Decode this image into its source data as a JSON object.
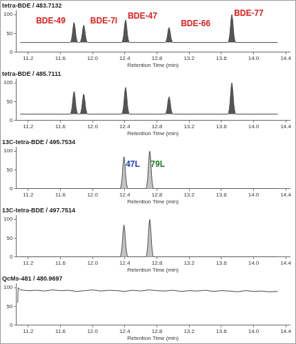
{
  "chart_data": [
    {
      "type": "area",
      "title": "tetra-BDE / 483.7132",
      "x_label": "Retention Time (min)",
      "x": [
        11.1,
        11.72,
        11.745,
        11.758,
        11.77,
        11.782,
        11.795,
        11.82,
        11.84,
        11.865,
        11.878,
        11.89,
        11.902,
        11.915,
        11.94,
        12.36,
        12.385,
        12.398,
        12.41,
        12.422,
        12.435,
        12.46,
        12.9,
        12.925,
        12.938,
        12.95,
        12.962,
        12.975,
        13.0,
        13.68,
        13.705,
        13.718,
        13.73,
        13.742,
        13.755,
        13.78,
        14.3
      ],
      "values": [
        26,
        26,
        42,
        66,
        79,
        66,
        42,
        26,
        26,
        40,
        60,
        72,
        60,
        40,
        26,
        26,
        44,
        71,
        86,
        71,
        44,
        26,
        26,
        38,
        56,
        66,
        56,
        38,
        26,
        26,
        48,
        82,
        100,
        82,
        48,
        26,
        26
      ],
      "color": "#555555",
      "xlim": [
        11.05,
        14.45
      ],
      "xticks": [
        11.2,
        11.6,
        {
          "value": 12,
          "label": "12.0"
        },
        12.4,
        12.8,
        13.2,
        13.6,
        {
          "value": 14,
          "label": "14.0"
        },
        14.4
      ],
      "ylim": [
        0,
        110
      ],
      "yticks": [
        0,
        50,
        100
      ],
      "grid": false,
      "annotations": [
        {
          "text": "BDE-49",
          "x": 11.48,
          "y": 82,
          "color": "#e02020"
        },
        {
          "text": "BDE-7l",
          "x": 12.14,
          "y": 82,
          "color": "#e02020"
        },
        {
          "text": "BDE-47",
          "x": 12.62,
          "y": 96,
          "color": "#e02020"
        },
        {
          "text": "BDE-66",
          "x": 13.28,
          "y": 75,
          "color": "#e02020"
        },
        {
          "text": "BDE-77",
          "x": 13.94,
          "y": 102,
          "color": "#e02020"
        }
      ]
    },
    {
      "type": "area",
      "title": "tetra-BDE / 485.7111",
      "x_label": "Retention Time (min)",
      "x": [
        11.1,
        11.72,
        11.745,
        11.758,
        11.77,
        11.782,
        11.795,
        11.82,
        11.84,
        11.865,
        11.878,
        11.89,
        11.902,
        11.915,
        11.94,
        12.36,
        12.385,
        12.398,
        12.41,
        12.422,
        12.435,
        12.46,
        12.9,
        12.925,
        12.938,
        12.95,
        12.962,
        12.975,
        13.0,
        13.68,
        13.705,
        13.718,
        13.73,
        13.742,
        13.755,
        13.78,
        14.3
      ],
      "values": [
        17,
        17,
        35,
        62,
        77,
        62,
        35,
        17,
        17,
        33,
        57,
        70,
        57,
        33,
        17,
        17,
        38,
        70,
        88,
        70,
        38,
        17,
        17,
        31,
        52,
        63,
        52,
        31,
        17,
        17,
        42,
        79,
        100,
        79,
        42,
        17,
        17
      ],
      "color": "#555555",
      "xlim": [
        11.05,
        14.45
      ],
      "xticks": [
        11.2,
        11.6,
        {
          "value": 12,
          "label": "12.0"
        },
        12.4,
        12.8,
        13.2,
        13.6,
        {
          "value": 14,
          "label": "14.0"
        },
        14.4
      ],
      "ylim": [
        0,
        110
      ],
      "yticks": [
        0,
        50,
        100
      ],
      "grid": false
    },
    {
      "type": "area",
      "title": "13C-tetra-BDE / 495.7534",
      "x_label": "Retention Time (min)",
      "x": [
        11.1,
        12.34,
        12.365,
        12.378,
        12.39,
        12.402,
        12.415,
        12.44,
        12.66,
        12.685,
        12.698,
        12.71,
        12.722,
        12.735,
        12.76,
        14.3
      ],
      "values": [
        0,
        0,
        26,
        64,
        85,
        64,
        26,
        0,
        0,
        30,
        75,
        100,
        75,
        30,
        0,
        0
      ],
      "color": "#c4c4c4",
      "xlim": [
        11.05,
        14.45
      ],
      "xticks": [
        11.2,
        11.6,
        {
          "value": 12,
          "label": "12.0"
        },
        12.4,
        12.8,
        13.2,
        13.6,
        {
          "value": 14,
          "label": "14.0"
        },
        14.4
      ],
      "ylim": [
        0,
        110
      ],
      "yticks": [
        0,
        50,
        100
      ],
      "grid": false,
      "annotations": [
        {
          "text": "47L",
          "x": 12.5,
          "y": 64,
          "color": "#2040b0"
        },
        {
          "text": "79L",
          "x": 12.81,
          "y": 64,
          "color": "#1e7b1e"
        }
      ]
    },
    {
      "type": "area",
      "title": "13C-tetra-BDE / 497.7514",
      "x_label": "Retention Time (min)",
      "x": [
        11.1,
        12.34,
        12.365,
        12.378,
        12.39,
        12.402,
        12.415,
        12.44,
        12.66,
        12.685,
        12.698,
        12.71,
        12.722,
        12.735,
        12.76,
        14.3
      ],
      "values": [
        0,
        0,
        26,
        64,
        85,
        64,
        26,
        0,
        0,
        30,
        75,
        100,
        75,
        30,
        0,
        0
      ],
      "color": "#c4c4c4",
      "xlim": [
        11.05,
        14.45
      ],
      "xticks": [
        11.2,
        11.6,
        {
          "value": 12,
          "label": "12.0"
        },
        12.4,
        12.8,
        13.2,
        13.6,
        {
          "value": 14,
          "label": "14.0"
        },
        14.4
      ],
      "ylim": [
        0,
        110
      ],
      "yticks": [
        0,
        50,
        100
      ],
      "grid": false
    },
    {
      "type": "line",
      "title": "QcMs-481 / 480.9697",
      "x_label": "Retention Time (min)",
      "x": [
        11.07,
        11.075,
        11.1,
        11.2,
        11.3,
        11.4,
        11.5,
        11.6,
        11.7,
        11.8,
        11.9,
        12.0,
        12.1,
        12.2,
        12.3,
        12.4,
        12.5,
        12.6,
        12.7,
        12.8,
        12.9,
        13.0,
        13.1,
        13.2,
        13.3,
        13.4,
        13.5,
        13.6,
        13.7,
        13.8,
        13.9,
        14.0,
        14.1,
        14.2,
        14.3
      ],
      "values": [
        60,
        100,
        94,
        92,
        93,
        91,
        94,
        92,
        93,
        90,
        92,
        94,
        91,
        93,
        92,
        90,
        93,
        91,
        94,
        92,
        91,
        93,
        90,
        92,
        91,
        93,
        90,
        92,
        91,
        89,
        92,
        90,
        91,
        89,
        90
      ],
      "color": "#444444",
      "xlim": [
        11.05,
        14.45
      ],
      "xticks": [
        11.2,
        11.6,
        {
          "value": 12,
          "label": "12.0"
        },
        12.4,
        12.8,
        13.2,
        13.6,
        {
          "value": 14,
          "label": "14.0"
        },
        14.4
      ],
      "ylim": [
        0,
        110
      ],
      "yticks": [
        0,
        50,
        100
      ],
      "grid": false
    }
  ]
}
